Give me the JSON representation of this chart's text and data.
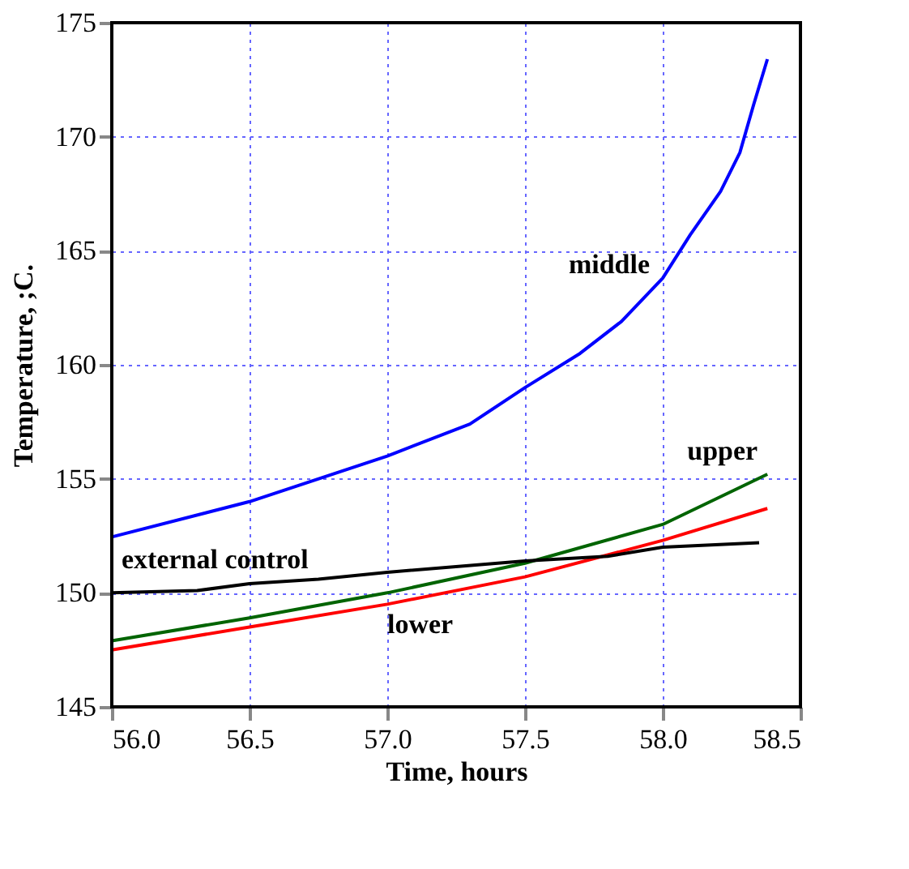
{
  "chart_data": {
    "type": "line",
    "xlabel": "Time, hours",
    "ylabel": "Temperature, ;C.",
    "xlim": [
      56,
      58.5
    ],
    "xticks": [
      {
        "value": 56,
        "label": "56.0"
      },
      {
        "value": 56.5,
        "label": "56.5"
      },
      {
        "value": 57,
        "label": "57.0"
      },
      {
        "value": 57.5,
        "label": "57.5"
      },
      {
        "value": 58,
        "label": "58.0"
      },
      {
        "value": 58.5,
        "label": "58.5"
      }
    ],
    "ylim": [
      145,
      175
    ],
    "yticks": [
      145,
      150,
      155,
      160,
      165,
      170,
      175
    ],
    "grid": true,
    "legend": false,
    "line_style": "solid",
    "marker": "none",
    "series": [
      {
        "name": "middle",
        "color": "#0000ff",
        "x": [
          56,
          56.5,
          57,
          57.3,
          57.5,
          57.7,
          57.85,
          58,
          58.1,
          58.21,
          58.28,
          58.33,
          58.38
        ],
        "values": [
          152.45,
          154,
          156,
          157.4,
          159,
          160.5,
          161.9,
          163.8,
          165.7,
          167.6,
          169.3,
          171.4,
          173.4
        ]
      },
      {
        "name": "upper",
        "color": "#006400",
        "x": [
          56,
          56.5,
          57,
          57.5,
          58,
          58.38
        ],
        "values": [
          147.9,
          148.9,
          150,
          151.3,
          153,
          155.2
        ]
      },
      {
        "name": "lower",
        "color": "#ff0000",
        "x": [
          56,
          56.5,
          57,
          57.5,
          58,
          58.38
        ],
        "values": [
          147.5,
          148.5,
          149.5,
          150.7,
          152.3,
          153.7
        ]
      },
      {
        "name": "external control",
        "color": "#000000",
        "x": [
          56,
          56.31,
          56.5,
          56.75,
          57,
          57.5,
          57.8,
          58,
          58.35
        ],
        "values": [
          150,
          150.1,
          150.4,
          150.6,
          150.9,
          151.4,
          151.6,
          152,
          152.2
        ]
      }
    ]
  }
}
